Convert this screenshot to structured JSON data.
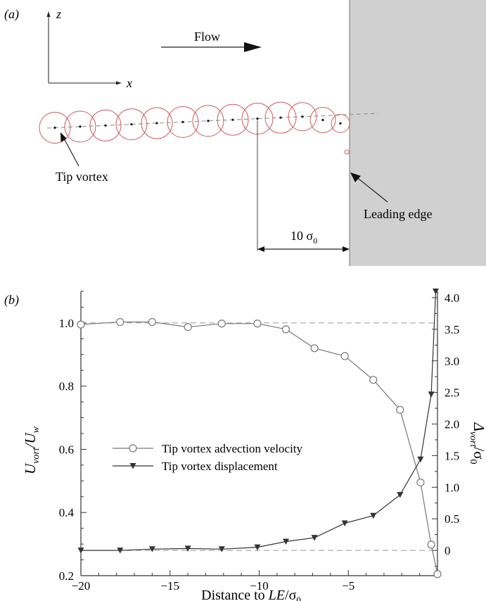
{
  "panel_a": {
    "label": "(a)",
    "axis_z": "z",
    "axis_x": "x",
    "flow_label": "Flow",
    "tip_vortex_label": "Tip vortex",
    "leading_edge_label": "Leading edge",
    "distance_label": "10 σ",
    "distance_sub": "0",
    "n_circles": 13
  },
  "panel_b": {
    "label": "(b)"
  },
  "chart_data": {
    "type": "line",
    "xlabel_pre": "Distance to ",
    "xlabel_italic": "LE",
    "xlabel_post": "/σ",
    "xlabel_sub": "0",
    "ylabel_left": "U",
    "ylabel_left_sub1": "vort",
    "ylabel_left_mid": "/U",
    "ylabel_left_sub2": "w",
    "ylabel_right": "Δ",
    "ylabel_right_sub1": "vort",
    "ylabel_right_mid": "/σ",
    "ylabel_right_sub2": "0",
    "xlim": [
      -20,
      0
    ],
    "ylim_left": [
      0.2,
      1.1
    ],
    "ylim_right": [
      -0.4,
      4.1
    ],
    "x_ticks": [
      -20,
      -15,
      -10,
      -5
    ],
    "x_tick_labels": [
      "−20",
      "−15",
      "−10",
      "−5"
    ],
    "y_left_ticks": [
      0.2,
      0.4,
      0.6,
      0.8,
      1.0
    ],
    "y_left_tick_labels": [
      "0.2",
      "0.4",
      "0.6",
      "0.8",
      "1.0"
    ],
    "y_right_ticks": [
      0,
      0.5,
      1.0,
      1.5,
      2.0,
      2.5,
      3.0,
      3.5,
      4.0
    ],
    "y_right_tick_labels": [
      "0",
      "0.5",
      "1.0",
      "1.5",
      "2.0",
      "2.5",
      "3.0",
      "3.5",
      "4.0"
    ],
    "reference_lines_left": [
      1.0,
      0.28
    ],
    "legend_position": "center-left",
    "series": [
      {
        "name": "Tip vortex advection velocity",
        "axis": "left",
        "marker": "open-circle",
        "color": "#777777",
        "x": [
          -20,
          -17.8,
          -16,
          -14,
          -12.1,
          -10.1,
          -8.5,
          -6.9,
          -5.2,
          -3.6,
          -2.1,
          -0.95,
          -0.35,
          0
        ],
        "y": [
          0.995,
          1.003,
          1.003,
          0.987,
          0.998,
          0.998,
          0.98,
          0.92,
          0.895,
          0.82,
          0.725,
          0.495,
          0.298,
          0.205
        ]
      },
      {
        "name": "Tip vortex displacement",
        "axis": "right",
        "marker": "filled-triangle-down",
        "color": "#333333",
        "x": [
          -20,
          -17.8,
          -16,
          -14,
          -12.1,
          -10.1,
          -8.5,
          -6.9,
          -5.2,
          -3.6,
          -2.1,
          -0.95,
          -0.35,
          -0.1
        ],
        "y": [
          0.0,
          0.0,
          0.02,
          0.03,
          0.02,
          0.05,
          0.14,
          0.2,
          0.43,
          0.55,
          0.88,
          1.44,
          2.47,
          4.1
        ]
      }
    ]
  }
}
